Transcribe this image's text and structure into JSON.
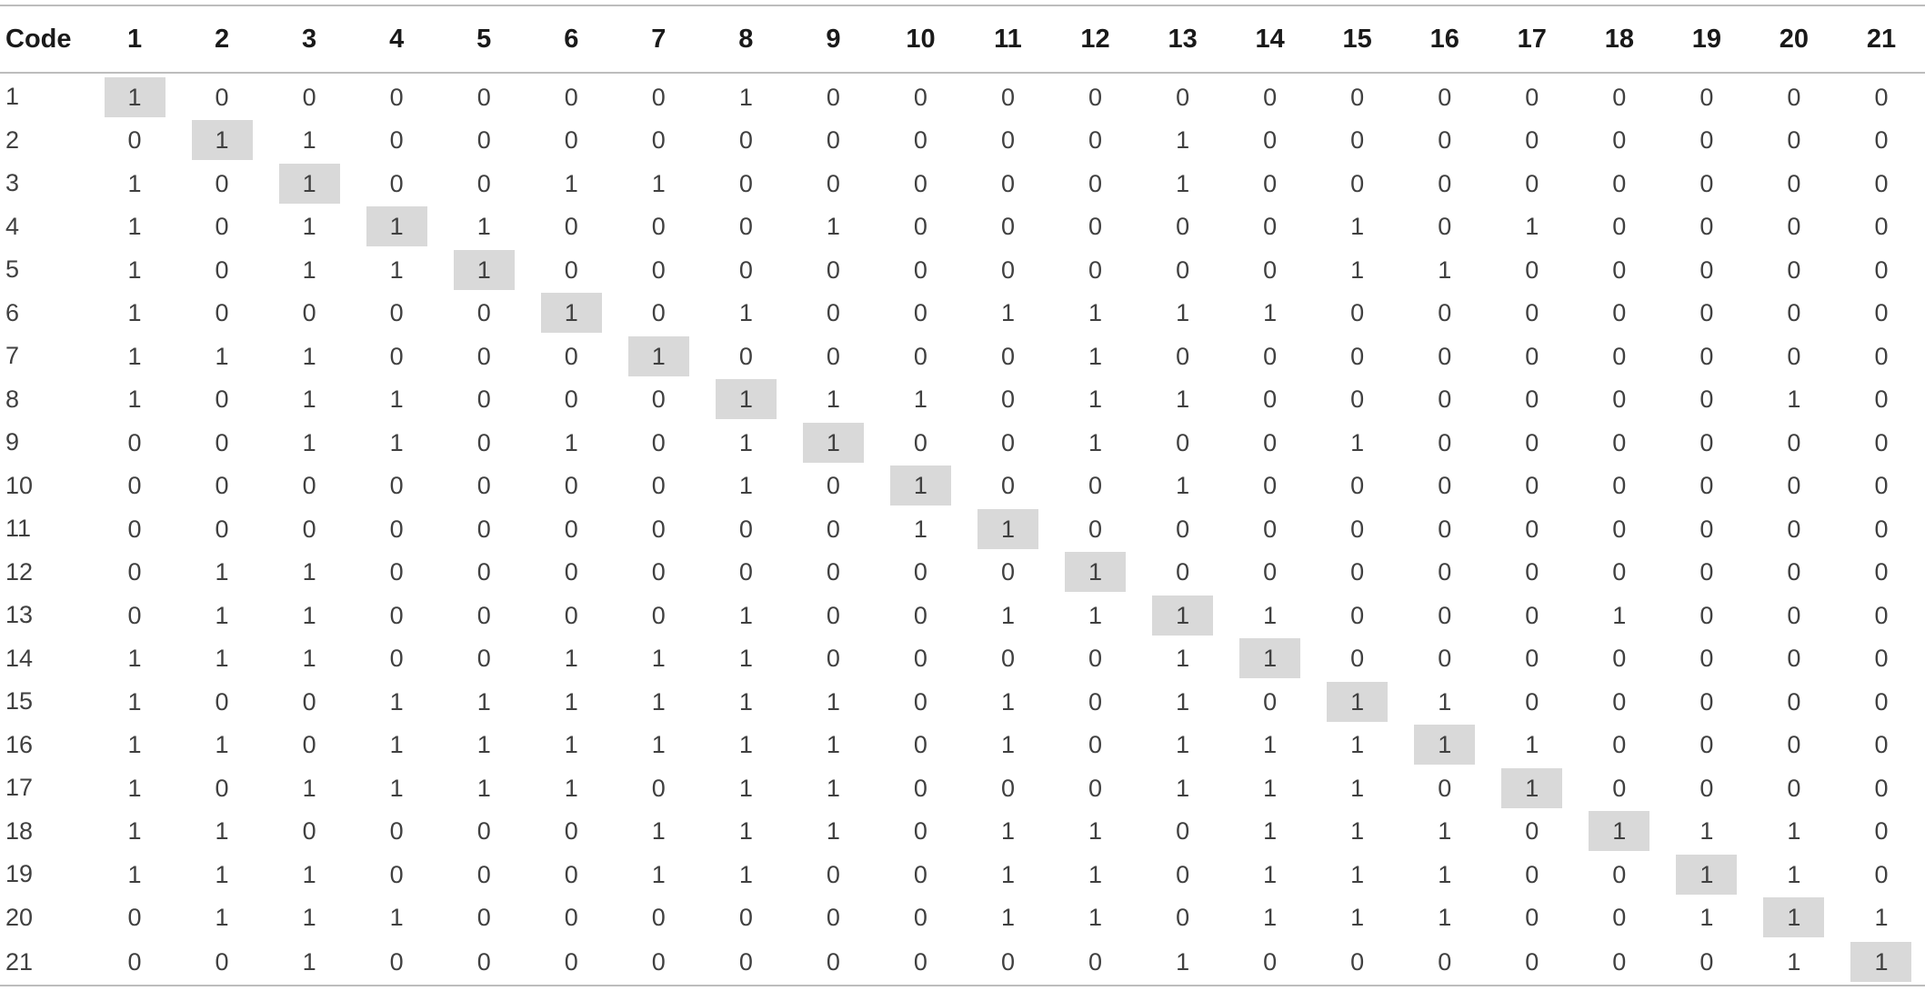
{
  "table": {
    "corner_label": "Code",
    "column_headers": [
      "1",
      "2",
      "3",
      "4",
      "5",
      "6",
      "7",
      "8",
      "9",
      "10",
      "11",
      "12",
      "13",
      "14",
      "15",
      "16",
      "17",
      "18",
      "19",
      "20",
      "21"
    ],
    "rows": [
      {
        "code": "1",
        "values": [
          1,
          0,
          0,
          0,
          0,
          0,
          0,
          1,
          0,
          0,
          0,
          0,
          0,
          0,
          0,
          0,
          0,
          0,
          0,
          0,
          0
        ]
      },
      {
        "code": "2",
        "values": [
          0,
          1,
          1,
          0,
          0,
          0,
          0,
          0,
          0,
          0,
          0,
          0,
          1,
          0,
          0,
          0,
          0,
          0,
          0,
          0,
          0
        ]
      },
      {
        "code": "3",
        "values": [
          1,
          0,
          1,
          0,
          0,
          1,
          1,
          0,
          0,
          0,
          0,
          0,
          1,
          0,
          0,
          0,
          0,
          0,
          0,
          0,
          0
        ]
      },
      {
        "code": "4",
        "values": [
          1,
          0,
          1,
          1,
          1,
          0,
          0,
          0,
          1,
          0,
          0,
          0,
          0,
          0,
          1,
          0,
          1,
          0,
          0,
          0,
          0
        ]
      },
      {
        "code": "5",
        "values": [
          1,
          0,
          1,
          1,
          1,
          0,
          0,
          0,
          0,
          0,
          0,
          0,
          0,
          0,
          1,
          1,
          0,
          0,
          0,
          0,
          0
        ]
      },
      {
        "code": "6",
        "values": [
          1,
          0,
          0,
          0,
          0,
          1,
          0,
          1,
          0,
          0,
          1,
          1,
          1,
          1,
          0,
          0,
          0,
          0,
          0,
          0,
          0
        ]
      },
      {
        "code": "7",
        "values": [
          1,
          1,
          1,
          0,
          0,
          0,
          1,
          0,
          0,
          0,
          0,
          1,
          0,
          0,
          0,
          0,
          0,
          0,
          0,
          0,
          0
        ]
      },
      {
        "code": "8",
        "values": [
          1,
          0,
          1,
          1,
          0,
          0,
          0,
          1,
          1,
          1,
          0,
          1,
          1,
          0,
          0,
          0,
          0,
          0,
          0,
          1,
          0
        ]
      },
      {
        "code": "9",
        "values": [
          0,
          0,
          1,
          1,
          0,
          1,
          0,
          1,
          1,
          0,
          0,
          1,
          0,
          0,
          1,
          0,
          0,
          0,
          0,
          0,
          0
        ]
      },
      {
        "code": "10",
        "values": [
          0,
          0,
          0,
          0,
          0,
          0,
          0,
          1,
          0,
          1,
          0,
          0,
          1,
          0,
          0,
          0,
          0,
          0,
          0,
          0,
          0
        ]
      },
      {
        "code": "11",
        "values": [
          0,
          0,
          0,
          0,
          0,
          0,
          0,
          0,
          0,
          1,
          1,
          0,
          0,
          0,
          0,
          0,
          0,
          0,
          0,
          0,
          0
        ]
      },
      {
        "code": "12",
        "values": [
          0,
          1,
          1,
          0,
          0,
          0,
          0,
          0,
          0,
          0,
          0,
          1,
          0,
          0,
          0,
          0,
          0,
          0,
          0,
          0,
          0
        ]
      },
      {
        "code": "13",
        "values": [
          0,
          1,
          1,
          0,
          0,
          0,
          0,
          1,
          0,
          0,
          1,
          1,
          1,
          1,
          0,
          0,
          0,
          1,
          0,
          0,
          0
        ]
      },
      {
        "code": "14",
        "values": [
          1,
          1,
          1,
          0,
          0,
          1,
          1,
          1,
          0,
          0,
          0,
          0,
          1,
          1,
          0,
          0,
          0,
          0,
          0,
          0,
          0
        ]
      },
      {
        "code": "15",
        "values": [
          1,
          0,
          0,
          1,
          1,
          1,
          1,
          1,
          1,
          0,
          1,
          0,
          1,
          0,
          1,
          1,
          0,
          0,
          0,
          0,
          0
        ]
      },
      {
        "code": "16",
        "values": [
          1,
          1,
          0,
          1,
          1,
          1,
          1,
          1,
          1,
          0,
          1,
          0,
          1,
          1,
          1,
          1,
          1,
          0,
          0,
          0,
          0
        ]
      },
      {
        "code": "17",
        "values": [
          1,
          0,
          1,
          1,
          1,
          1,
          0,
          1,
          1,
          0,
          0,
          0,
          1,
          1,
          1,
          0,
          1,
          0,
          0,
          0,
          0
        ]
      },
      {
        "code": "18",
        "values": [
          1,
          1,
          0,
          0,
          0,
          0,
          1,
          1,
          1,
          0,
          1,
          1,
          0,
          1,
          1,
          1,
          0,
          1,
          1,
          1,
          0
        ]
      },
      {
        "code": "19",
        "values": [
          1,
          1,
          1,
          0,
          0,
          0,
          1,
          1,
          0,
          0,
          1,
          1,
          0,
          1,
          1,
          1,
          0,
          0,
          1,
          1,
          0
        ]
      },
      {
        "code": "20",
        "values": [
          0,
          1,
          1,
          1,
          0,
          0,
          0,
          0,
          0,
          0,
          1,
          1,
          0,
          1,
          1,
          1,
          0,
          0,
          1,
          1,
          1
        ]
      },
      {
        "code": "21",
        "values": [
          0,
          0,
          1,
          0,
          0,
          0,
          0,
          0,
          0,
          0,
          0,
          0,
          1,
          0,
          0,
          0,
          0,
          0,
          0,
          1,
          1
        ]
      }
    ]
  },
  "colors": {
    "diagonal_highlight": "#d9d9d9",
    "rule_lines": "#bdbdbd",
    "header_text": "#1a1a1a",
    "body_text": "#404040"
  }
}
